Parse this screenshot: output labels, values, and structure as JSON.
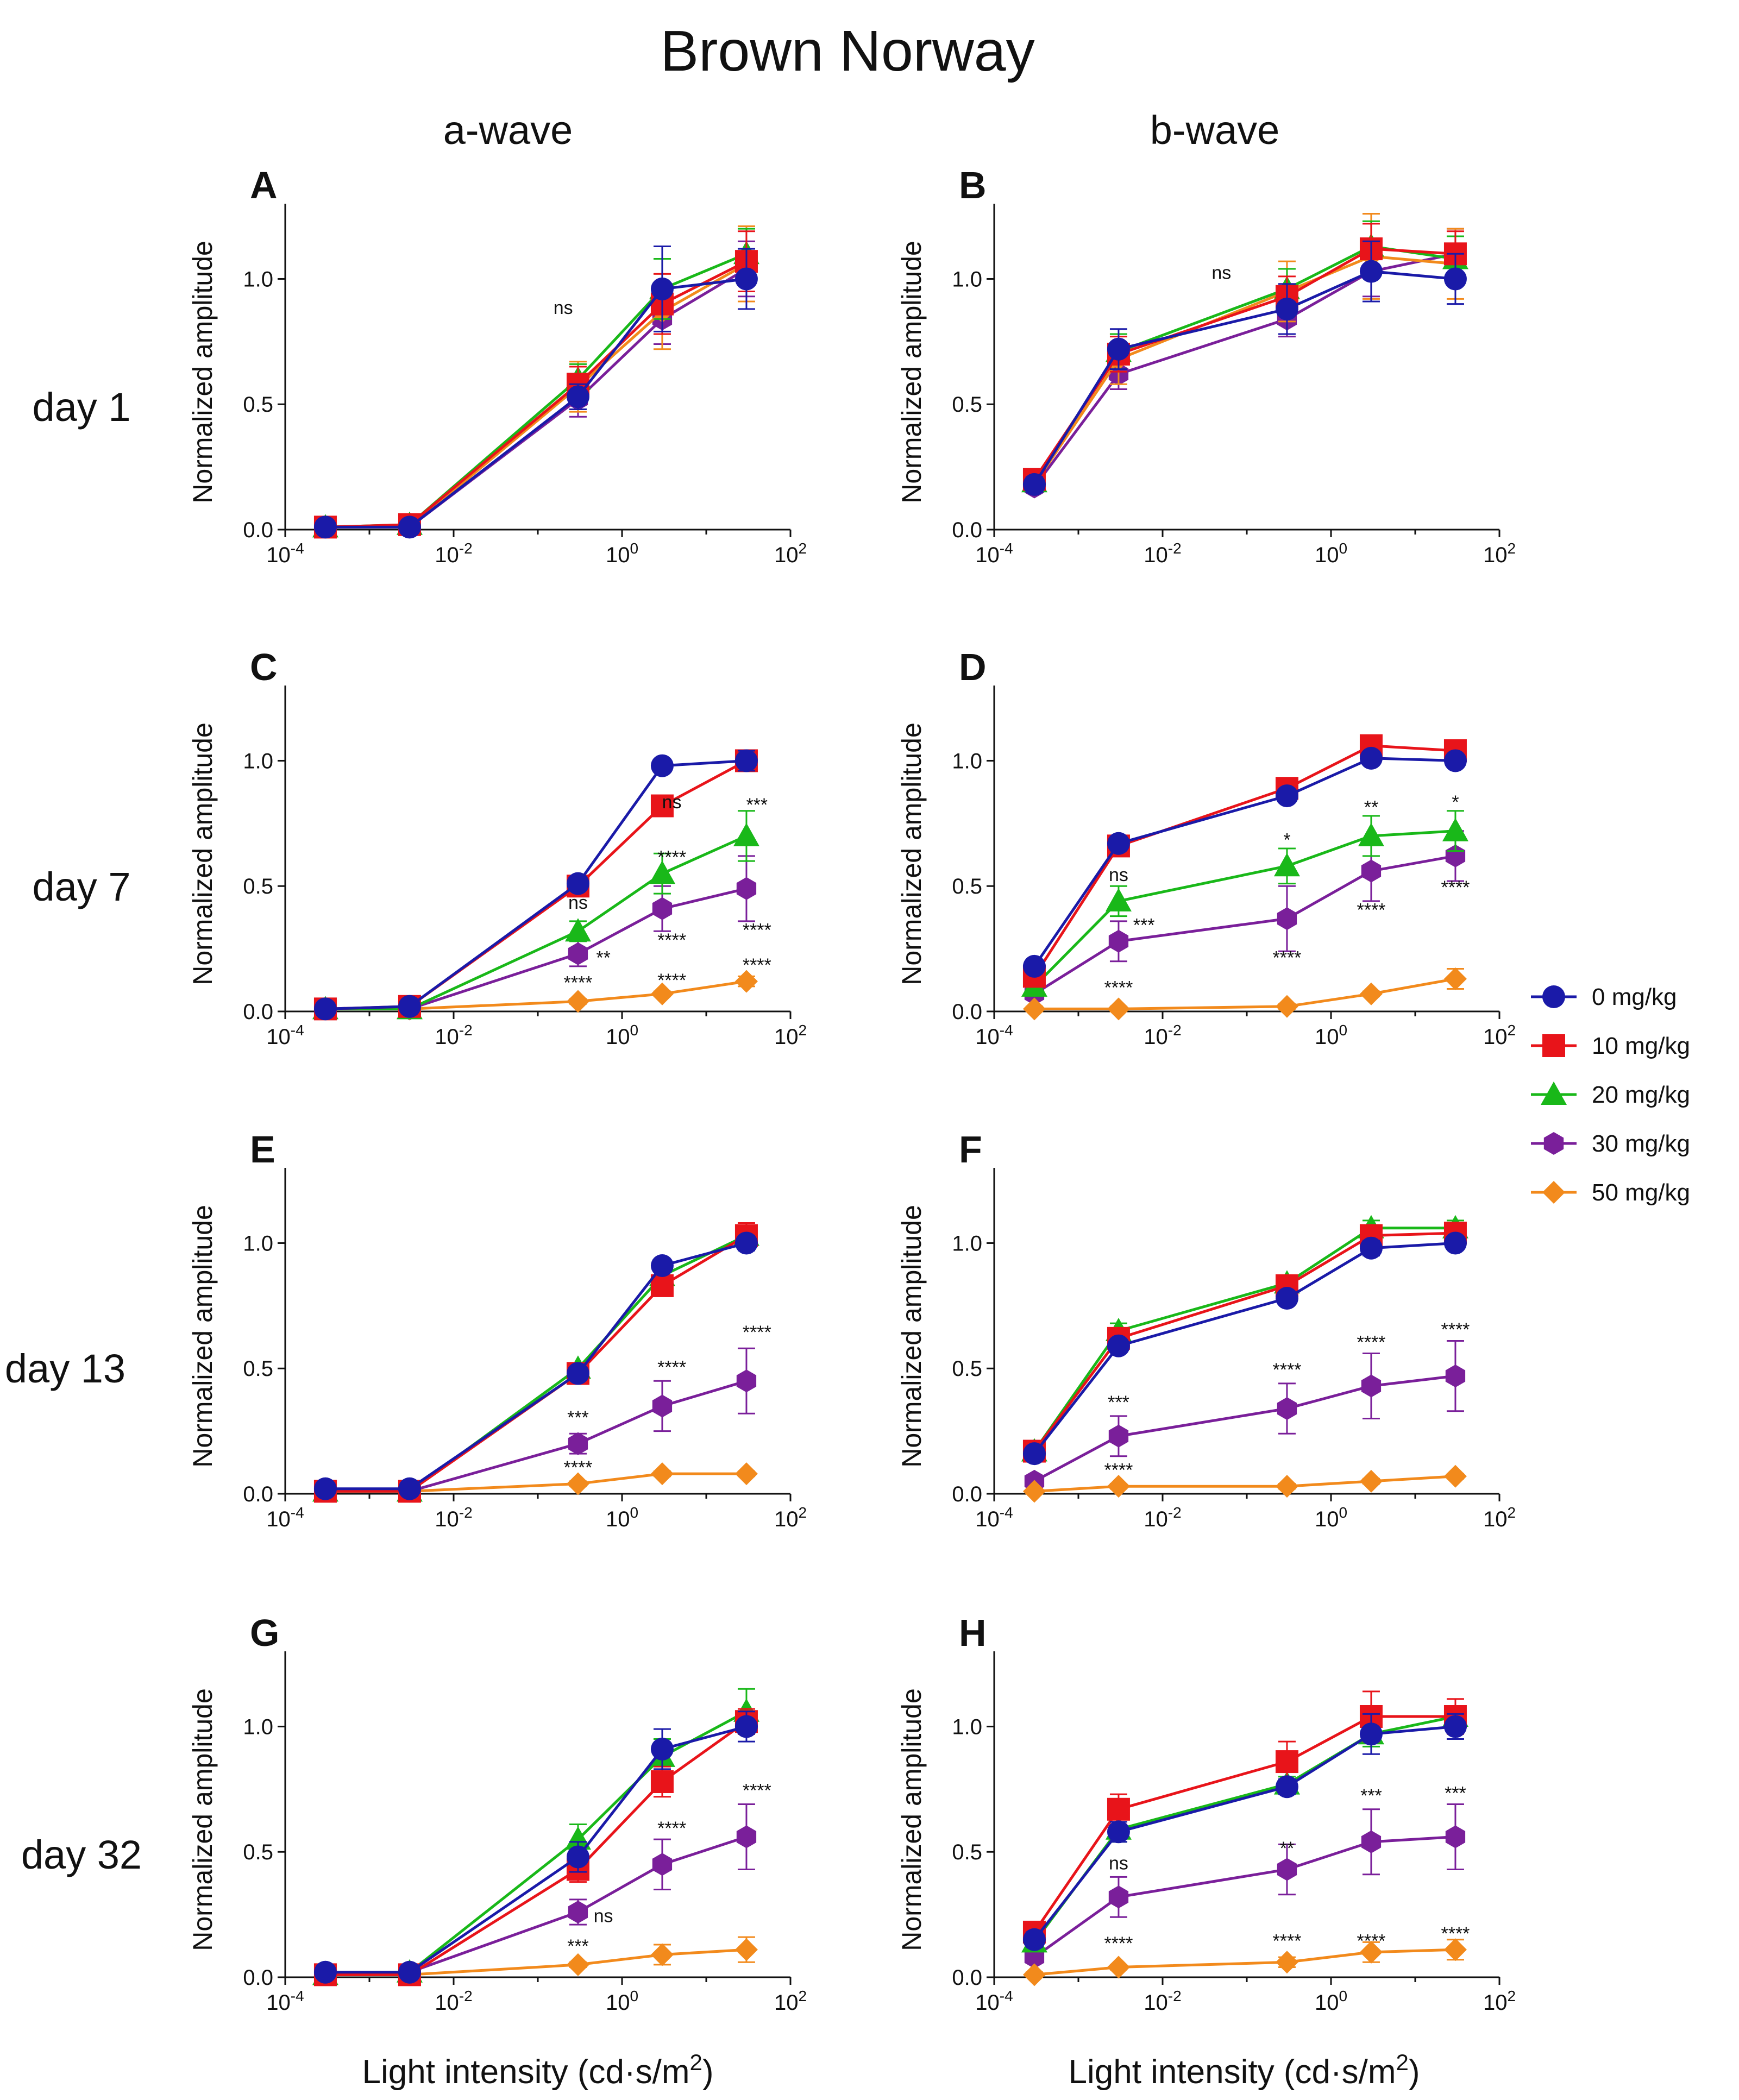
{
  "title": "Brown Norway",
  "columns": [
    "a-wave",
    "b-wave"
  ],
  "rows": [
    "day 1",
    "day 7",
    "day 13",
    "day 32"
  ],
  "ylabel": "Normalized amplitude",
  "xlabel_main": "Light intensity (cd·s/m",
  "xlabel_sup": "2",
  "xlabel_close": ")",
  "xlabel": "Light intensity (cd·s/m²)",
  "xticks": [
    {
      "base": "10",
      "exp": "-4"
    },
    {
      "base": "10",
      "exp": "-2"
    },
    {
      "base": "10",
      "exp": "0"
    },
    {
      "base": "10",
      "exp": "2"
    }
  ],
  "yticks": [
    "0.0",
    "0.5",
    "1.0"
  ],
  "legend": [
    {
      "label": "0 mg/kg",
      "color": "#1a1aa8",
      "marker": "circle"
    },
    {
      "label": "10 mg/kg",
      "color": "#e8141a",
      "marker": "square"
    },
    {
      "label": "20 mg/kg",
      "color": "#19b819",
      "marker": "triangle"
    },
    {
      "label": "30 mg/kg",
      "color": "#7a1f9a",
      "marker": "hexagon"
    },
    {
      "label": "50 mg/kg",
      "color": "#f28a1c",
      "marker": "diamond"
    }
  ],
  "chart_data": [
    {
      "panel": "A",
      "type": "line",
      "row": "day 1",
      "column": "a-wave",
      "xscale": "log",
      "xlim": [
        0.0001,
        100
      ],
      "ylim": [
        0,
        1.3
      ],
      "x": [
        0.0003,
        0.003,
        0.3,
        3,
        30
      ],
      "series": [
        {
          "name": "0 mg/kg",
          "values": [
            0.01,
            0.01,
            0.53,
            0.96,
            1.0
          ],
          "err": [
            0.01,
            0.01,
            0.05,
            0.17,
            0.12
          ]
        },
        {
          "name": "10 mg/kg",
          "values": [
            0.01,
            0.02,
            0.58,
            0.9,
            1.07
          ],
          "err": [
            0.01,
            0.01,
            0.07,
            0.12,
            0.12
          ]
        },
        {
          "name": "20 mg/kg",
          "values": [
            0.01,
            0.02,
            0.6,
            0.96,
            1.1
          ],
          "err": [
            0.01,
            0.01,
            0.06,
            0.12,
            0.1
          ]
        },
        {
          "name": "30 mg/kg",
          "values": [
            0.01,
            0.01,
            0.52,
            0.84,
            1.04
          ],
          "err": [
            0.01,
            0.01,
            0.07,
            0.1,
            0.11
          ]
        },
        {
          "name": "50 mg/kg",
          "values": [
            0.01,
            0.01,
            0.57,
            0.87,
            1.06
          ],
          "err": [
            0.01,
            0.01,
            0.1,
            0.15,
            0.15
          ]
        }
      ],
      "annotations": [
        {
          "text": "ns",
          "x": 0.2,
          "y": 0.86
        }
      ]
    },
    {
      "panel": "B",
      "type": "line",
      "row": "day 1",
      "column": "b-wave",
      "xscale": "log",
      "xlim": [
        0.0001,
        100
      ],
      "ylim": [
        0,
        1.3
      ],
      "x": [
        0.0003,
        0.003,
        0.3,
        3,
        30
      ],
      "series": [
        {
          "name": "0 mg/kg",
          "values": [
            0.18,
            0.72,
            0.88,
            1.03,
            1.0
          ],
          "err": [
            0.03,
            0.08,
            0.1,
            0.12,
            0.1
          ]
        },
        {
          "name": "10 mg/kg",
          "values": [
            0.2,
            0.7,
            0.93,
            1.12,
            1.1
          ],
          "err": [
            0.02,
            0.07,
            0.08,
            0.1,
            0.09
          ]
        },
        {
          "name": "20 mg/kg",
          "values": [
            0.19,
            0.71,
            0.96,
            1.13,
            1.08
          ],
          "err": [
            0.02,
            0.07,
            0.08,
            0.1,
            0.09
          ]
        },
        {
          "name": "30 mg/kg",
          "values": [
            0.17,
            0.62,
            0.84,
            1.03,
            1.1
          ],
          "err": [
            0.02,
            0.06,
            0.07,
            0.1,
            0.1
          ]
        },
        {
          "name": "50 mg/kg",
          "values": [
            0.18,
            0.68,
            0.95,
            1.09,
            1.06
          ],
          "err": [
            0.03,
            0.1,
            0.12,
            0.17,
            0.14
          ]
        }
      ],
      "annotations": [
        {
          "text": "ns",
          "x": 0.05,
          "y": 1.0
        }
      ]
    },
    {
      "panel": "C",
      "type": "line",
      "row": "day 7",
      "column": "a-wave",
      "xscale": "log",
      "xlim": [
        0.0001,
        100
      ],
      "ylim": [
        0,
        1.3
      ],
      "x": [
        0.0003,
        0.003,
        0.3,
        3,
        30
      ],
      "series": [
        {
          "name": "0 mg/kg",
          "values": [
            0.01,
            0.02,
            0.51,
            0.98,
            1.0
          ],
          "err": [
            0.01,
            0.01,
            0.02,
            0.01,
            0.04
          ]
        },
        {
          "name": "10 mg/kg",
          "values": [
            0.01,
            0.02,
            0.5,
            0.82,
            1.0
          ],
          "err": [
            0.01,
            0.01,
            0.02,
            0.02,
            0.04
          ]
        },
        {
          "name": "20 mg/kg",
          "values": [
            0.01,
            0.01,
            0.32,
            0.55,
            0.7
          ],
          "err": [
            0.01,
            0.01,
            0.04,
            0.08,
            0.1
          ]
        },
        {
          "name": "30 mg/kg",
          "values": [
            0.01,
            0.01,
            0.23,
            0.41,
            0.49
          ],
          "err": [
            0.01,
            0.01,
            0.05,
            0.09,
            0.13
          ]
        },
        {
          "name": "50 mg/kg",
          "values": [
            0.01,
            0.01,
            0.04,
            0.07,
            0.12
          ],
          "err": [
            0.01,
            0.01,
            0.01,
            0.01,
            0.02
          ]
        }
      ],
      "annotations": [
        {
          "text": "ns",
          "x": 3.9,
          "y": 0.81
        },
        {
          "text": "***",
          "x": 40,
          "y": 0.8
        },
        {
          "text": "****",
          "x": 3.9,
          "y": 0.59
        },
        {
          "text": "ns",
          "x": 0.3,
          "y": 0.41
        },
        {
          "text": "****",
          "x": 3.9,
          "y": 0.26
        },
        {
          "text": "****",
          "x": 40,
          "y": 0.3
        },
        {
          "text": "**",
          "x": 0.6,
          "y": 0.19
        },
        {
          "text": "****",
          "x": 0.3,
          "y": 0.09
        },
        {
          "text": "****",
          "x": 3.9,
          "y": 0.1
        },
        {
          "text": "****",
          "x": 40,
          "y": 0.16
        }
      ]
    },
    {
      "panel": "D",
      "type": "line",
      "row": "day 7",
      "column": "b-wave",
      "xscale": "log",
      "xlim": [
        0.0001,
        100
      ],
      "ylim": [
        0,
        1.3
      ],
      "x": [
        0.0003,
        0.003,
        0.3,
        3,
        30
      ],
      "series": [
        {
          "name": "0 mg/kg",
          "values": [
            0.18,
            0.67,
            0.86,
            1.01,
            1.0
          ],
          "err": [
            0.02,
            0.02,
            0.02,
            0.02,
            0.02
          ]
        },
        {
          "name": "10 mg/kg",
          "values": [
            0.14,
            0.66,
            0.89,
            1.06,
            1.04
          ],
          "err": [
            0.02,
            0.02,
            0.02,
            0.03,
            0.03
          ]
        },
        {
          "name": "20 mg/kg",
          "values": [
            0.1,
            0.44,
            0.58,
            0.7,
            0.72
          ],
          "err": [
            0.02,
            0.06,
            0.07,
            0.08,
            0.08
          ]
        },
        {
          "name": "30 mg/kg",
          "values": [
            0.07,
            0.28,
            0.37,
            0.56,
            0.62
          ],
          "err": [
            0.02,
            0.08,
            0.13,
            0.12,
            0.1
          ]
        },
        {
          "name": "50 mg/kg",
          "values": [
            0.01,
            0.01,
            0.02,
            0.07,
            0.13
          ],
          "err": [
            0.01,
            0.01,
            0.01,
            0.01,
            0.04
          ]
        }
      ],
      "annotations": [
        {
          "text": "ns",
          "x": 0.003,
          "y": 0.52
        },
        {
          "text": "***",
          "x": 0.006,
          "y": 0.32
        },
        {
          "text": "****",
          "x": 0.003,
          "y": 0.07
        },
        {
          "text": "*",
          "x": 0.3,
          "y": 0.66
        },
        {
          "text": "****",
          "x": 0.3,
          "y": 0.19
        },
        {
          "text": "**",
          "x": 3,
          "y": 0.79
        },
        {
          "text": "****",
          "x": 3,
          "y": 0.38
        },
        {
          "text": "*",
          "x": 30,
          "y": 0.81
        },
        {
          "text": "****",
          "x": 30,
          "y": 0.47
        }
      ]
    },
    {
      "panel": "E",
      "type": "line",
      "row": "day 13",
      "column": "a-wave",
      "xscale": "log",
      "xlim": [
        0.0001,
        100
      ],
      "ylim": [
        0,
        1.3
      ],
      "x": [
        0.0003,
        0.003,
        0.3,
        3,
        30
      ],
      "series": [
        {
          "name": "0 mg/kg",
          "values": [
            0.02,
            0.02,
            0.48,
            0.91,
            1.0
          ],
          "err": [
            0.01,
            0.01,
            0.02,
            0.02,
            0.03
          ]
        },
        {
          "name": "10 mg/kg",
          "values": [
            0.01,
            0.01,
            0.48,
            0.83,
            1.03
          ],
          "err": [
            0.01,
            0.01,
            0.02,
            0.04,
            0.05
          ]
        },
        {
          "name": "20 mg/kg",
          "values": [
            0.01,
            0.01,
            0.5,
            0.87,
            1.03
          ],
          "err": [
            0.01,
            0.01,
            0.02,
            0.03,
            0.04
          ]
        },
        {
          "name": "30 mg/kg",
          "values": [
            0.02,
            0.01,
            0.2,
            0.35,
            0.45
          ],
          "err": [
            0.01,
            0.01,
            0.04,
            0.1,
            0.13
          ]
        },
        {
          "name": "50 mg/kg",
          "values": [
            0.02,
            0.01,
            0.04,
            0.08,
            0.08
          ],
          "err": [
            0.01,
            0.01,
            0.01,
            0.01,
            0.01
          ]
        }
      ],
      "annotations": [
        {
          "text": "***",
          "x": 0.3,
          "y": 0.28
        },
        {
          "text": "****",
          "x": 0.3,
          "y": 0.08
        },
        {
          "text": "****",
          "x": 3.9,
          "y": 0.48
        },
        {
          "text": "****",
          "x": 40,
          "y": 0.62
        }
      ]
    },
    {
      "panel": "F",
      "type": "line",
      "row": "day 13",
      "column": "b-wave",
      "xscale": "log",
      "xlim": [
        0.0001,
        100
      ],
      "ylim": [
        0,
        1.3
      ],
      "x": [
        0.0003,
        0.003,
        0.3,
        3,
        30
      ],
      "series": [
        {
          "name": "0 mg/kg",
          "values": [
            0.16,
            0.59,
            0.78,
            0.98,
            1.0
          ],
          "err": [
            0.02,
            0.02,
            0.02,
            0.03,
            0.02
          ]
        },
        {
          "name": "10 mg/kg",
          "values": [
            0.17,
            0.62,
            0.83,
            1.03,
            1.04
          ],
          "err": [
            0.02,
            0.03,
            0.03,
            0.03,
            0.03
          ]
        },
        {
          "name": "20 mg/kg",
          "values": [
            0.17,
            0.65,
            0.84,
            1.06,
            1.06
          ],
          "err": [
            0.02,
            0.03,
            0.03,
            0.03,
            0.03
          ]
        },
        {
          "name": "30 mg/kg",
          "values": [
            0.05,
            0.23,
            0.34,
            0.43,
            0.47
          ],
          "err": [
            0.02,
            0.08,
            0.1,
            0.13,
            0.14
          ]
        },
        {
          "name": "50 mg/kg",
          "values": [
            0.01,
            0.03,
            0.03,
            0.05,
            0.07
          ],
          "err": [
            0.01,
            0.01,
            0.01,
            0.01,
            0.01
          ]
        }
      ],
      "annotations": [
        {
          "text": "***",
          "x": 0.003,
          "y": 0.34
        },
        {
          "text": "****",
          "x": 0.003,
          "y": 0.07
        },
        {
          "text": "****",
          "x": 0.3,
          "y": 0.47
        },
        {
          "text": "****",
          "x": 3,
          "y": 0.58
        },
        {
          "text": "****",
          "x": 30,
          "y": 0.63
        }
      ]
    },
    {
      "panel": "G",
      "type": "line",
      "row": "day 32",
      "column": "a-wave",
      "xscale": "log",
      "xlim": [
        0.0001,
        100
      ],
      "ylim": [
        0,
        1.3
      ],
      "x": [
        0.0003,
        0.003,
        0.3,
        3,
        30
      ],
      "series": [
        {
          "name": "0 mg/kg",
          "values": [
            0.02,
            0.02,
            0.48,
            0.91,
            1.0
          ],
          "err": [
            0.01,
            0.01,
            0.06,
            0.08,
            0.06
          ]
        },
        {
          "name": "10 mg/kg",
          "values": [
            0.01,
            0.01,
            0.43,
            0.78,
            1.02
          ],
          "err": [
            0.01,
            0.01,
            0.05,
            0.06,
            0.05
          ]
        },
        {
          "name": "20 mg/kg",
          "values": [
            0.01,
            0.02,
            0.55,
            0.88,
            1.06
          ],
          "err": [
            0.01,
            0.01,
            0.06,
            0.07,
            0.09
          ]
        },
        {
          "name": "30 mg/kg",
          "values": [
            0.02,
            0.02,
            0.26,
            0.45,
            0.56
          ],
          "err": [
            0.01,
            0.01,
            0.05,
            0.1,
            0.13
          ]
        },
        {
          "name": "50 mg/kg",
          "values": [
            0.01,
            0.01,
            0.05,
            0.09,
            0.11
          ],
          "err": [
            0.01,
            0.01,
            0.01,
            0.04,
            0.05
          ]
        }
      ],
      "annotations": [
        {
          "text": "ns",
          "x": 0.6,
          "y": 0.22
        },
        {
          "text": "***",
          "x": 0.3,
          "y": 0.1
        },
        {
          "text": "****",
          "x": 3.9,
          "y": 0.57
        },
        {
          "text": "****",
          "x": 40,
          "y": 0.72
        }
      ]
    },
    {
      "panel": "H",
      "type": "line",
      "row": "day 32",
      "column": "b-wave",
      "xscale": "log",
      "xlim": [
        0.0001,
        100
      ],
      "ylim": [
        0,
        1.3
      ],
      "x": [
        0.0003,
        0.003,
        0.3,
        3,
        30
      ],
      "series": [
        {
          "name": "0 mg/kg",
          "values": [
            0.15,
            0.58,
            0.76,
            0.97,
            1.0
          ],
          "err": [
            0.03,
            0.04,
            0.03,
            0.08,
            0.05
          ]
        },
        {
          "name": "10 mg/kg",
          "values": [
            0.18,
            0.67,
            0.86,
            1.04,
            1.04
          ],
          "err": [
            0.02,
            0.06,
            0.08,
            0.1,
            0.07
          ]
        },
        {
          "name": "20 mg/kg",
          "values": [
            0.14,
            0.59,
            0.77,
            0.97,
            1.04
          ],
          "err": [
            0.02,
            0.05,
            0.03,
            0.05,
            0.04
          ]
        },
        {
          "name": "30 mg/kg",
          "values": [
            0.08,
            0.32,
            0.43,
            0.54,
            0.56
          ],
          "err": [
            0.02,
            0.08,
            0.1,
            0.13,
            0.13
          ]
        },
        {
          "name": "50 mg/kg",
          "values": [
            0.01,
            0.04,
            0.06,
            0.1,
            0.11
          ],
          "err": [
            0.01,
            0.01,
            0.02,
            0.04,
            0.04
          ]
        }
      ],
      "annotations": [
        {
          "text": "ns",
          "x": 0.003,
          "y": 0.43
        },
        {
          "text": "****",
          "x": 0.003,
          "y": 0.11
        },
        {
          "text": "**",
          "x": 0.3,
          "y": 0.49
        },
        {
          "text": "****",
          "x": 0.3,
          "y": 0.12
        },
        {
          "text": "***",
          "x": 3,
          "y": 0.7
        },
        {
          "text": "****",
          "x": 3,
          "y": 0.12
        },
        {
          "text": "***",
          "x": 30,
          "y": 0.71
        },
        {
          "text": "****",
          "x": 30,
          "y": 0.15
        }
      ]
    }
  ]
}
